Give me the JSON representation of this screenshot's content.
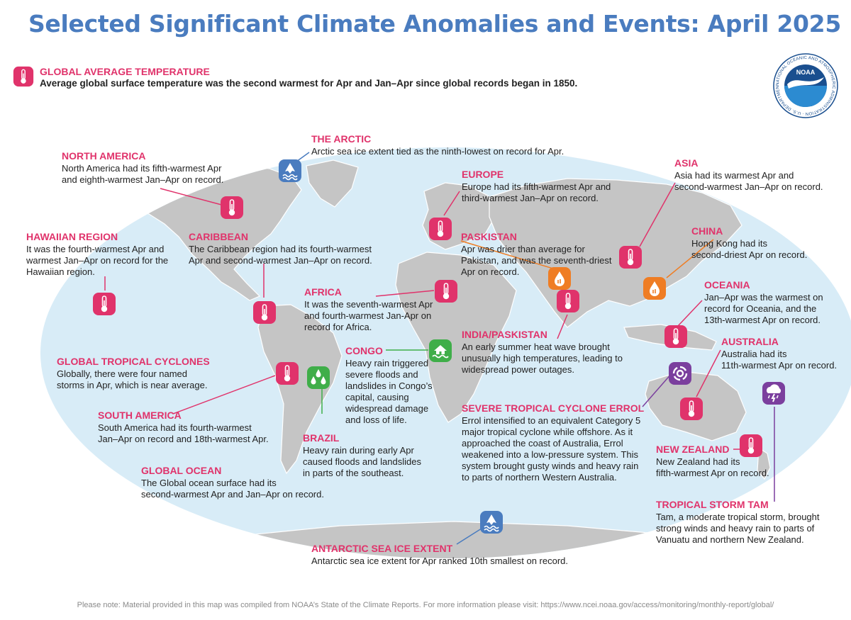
{
  "title": "Selected Significant Climate Anomalies and Events: April 2025",
  "logo_text": "NOAA",
  "logo_ring_text": "NATIONAL OCEANIC AND ATMOSPHERIC ADMINISTRATION · U.S. DEPARTMENT OF COMMERCE",
  "global": {
    "heading": "GLOBAL AVERAGE TEMPERATURE",
    "text": "Average global surface temperature was the second warmest for Apr and Jan–Apr since global records began in 1850.",
    "icon": "thermometer-icon"
  },
  "colors": {
    "title": "#4a7cbf",
    "heading": "#e0336b",
    "ocean": "#d8ecf7",
    "land": "#c5c5c5",
    "ice_icon": "#4a7cbf",
    "drought_icon": "#ef7d24",
    "rain_icon": "#3fae49",
    "storm_icon": "#7b3f9e"
  },
  "events": [
    {
      "id": "north-america",
      "heading": "NORTH AMERICA",
      "lines": [
        "North America had its fifth-warmest Apr",
        "and eighth-warmest Jan–Apr on record."
      ],
      "icon": "thermometer-icon"
    },
    {
      "id": "arctic",
      "heading": "THE ARCTIC",
      "lines": [
        "Arctic sea ice extent tied as the ninth-lowest on record for Apr."
      ],
      "icon": "sea-ice-icon"
    },
    {
      "id": "europe",
      "heading": "EUROPE",
      "lines": [
        "Europe had its fifth-warmest Apr and",
        "third-warmest Jan–Apr on record."
      ],
      "icon": "thermometer-icon"
    },
    {
      "id": "asia",
      "heading": "ASIA",
      "lines": [
        "Asia had its warmest Apr and",
        "second-warmest Jan–Apr on record."
      ],
      "icon": "thermometer-icon"
    },
    {
      "id": "hawaiian",
      "heading": "HAWAIIAN REGION",
      "lines": [
        "It was the fourth-warmest Apr and",
        "warmest Jan–Apr on record for the",
        "Hawaiian region."
      ],
      "icon": "thermometer-icon"
    },
    {
      "id": "caribbean",
      "heading": "CARIBBEAN",
      "lines": [
        "The Caribbean region had its fourth-warmest",
        "Apr and second-warmest Jan–Apr on record."
      ],
      "icon": "thermometer-icon"
    },
    {
      "id": "paskistan",
      "heading": "PASKISTAN",
      "lines": [
        "Apr was drier than average for",
        "Pakistan, and was the seventh-driest",
        "Apr on record."
      ],
      "icon": "drought-icon"
    },
    {
      "id": "china",
      "heading": "CHINA",
      "lines": [
        "Hong Kong had its",
        "second-driest Apr on record."
      ],
      "icon": "drought-icon"
    },
    {
      "id": "africa",
      "heading": "AFRICA",
      "lines": [
        "It was the seventh-warmest Apr",
        "and fourth-warmest Jan-Apr on",
        "record for Africa."
      ],
      "icon": "thermometer-icon"
    },
    {
      "id": "oceania",
      "heading": "OCEANIA",
      "lines": [
        "Jan–Apr was the warmest on",
        "record for Oceania, and the",
        "13th-warmest Apr on record."
      ],
      "icon": "thermometer-icon"
    },
    {
      "id": "india-paskistan",
      "heading": "INDIA/PASKISTAN",
      "lines": [
        "An early summer heat wave brought",
        "unusually high temperatures, leading to",
        "widespread power outages."
      ],
      "icon": "thermometer-icon"
    },
    {
      "id": "australia",
      "heading": "AUSTRALIA",
      "lines": [
        "Australia had its",
        "11th-warmest Apr on record."
      ],
      "icon": "thermometer-icon"
    },
    {
      "id": "tropical-cyclones",
      "heading": "GLOBAL TROPICAL CYCLONES",
      "lines": [
        "Globally, there were four named",
        "storms in Apr, which is near average."
      ],
      "icon": "thermometer-icon"
    },
    {
      "id": "congo",
      "heading": "CONGO",
      "lines": [
        "Heavy rain triggered",
        "severe floods and",
        "landslides in Congo’s",
        "capital, causing",
        "widespread damage",
        "and loss of life."
      ],
      "icon": "flood-icon"
    },
    {
      "id": "south-america",
      "heading": "SOUTH AMERICA",
      "lines": [
        "South America had its fourth-warmest",
        "Jan–Apr on record and 18th-warmest Apr."
      ],
      "icon": "thermometer-icon"
    },
    {
      "id": "brazil",
      "heading": "BRAZIL",
      "lines": [
        "Heavy rain during early Apr",
        "caused floods and landslides",
        "in parts of the southeast."
      ],
      "icon": "heavy-rain-icon"
    },
    {
      "id": "errol",
      "heading": "SEVERE TROPICAL CYCLONE ERROL",
      "lines": [
        "Errol intensified to an equivalent Category 5",
        "major tropical cyclone while offshore. As it",
        "approached the coast of Australia, Errol",
        "weakened into a low-pressure system. This",
        "system brought gusty winds and heavy rain",
        "to parts of northern Western Australia."
      ],
      "icon": "cyclone-icon"
    },
    {
      "id": "new-zealand",
      "heading": "NEW ZEALAND",
      "lines": [
        "New Zealand had its",
        "fifth-warmest Apr on record."
      ],
      "icon": "thermometer-icon"
    },
    {
      "id": "global-ocean",
      "heading": "GLOBAL OCEAN",
      "lines": [
        "The Global ocean surface had its",
        "second-warmest Apr and Jan–Apr on record."
      ],
      "icon": ""
    },
    {
      "id": "tam",
      "heading": "TROPICAL STORM TAM",
      "lines": [
        "Tam, a moderate tropical storm, brought",
        "strong winds and heavy rain to parts of",
        "Vanuatu and northern New Zealand."
      ],
      "icon": "storm-icon"
    },
    {
      "id": "antarctic",
      "heading": "ANTARCTIC SEA ICE EXTENT",
      "lines": [
        "Antarctic sea ice extent for Apr ranked 10th smallest on record."
      ],
      "icon": "sea-ice-icon"
    }
  ],
  "footer": "Please note: Material provided in this map was compiled from NOAA’s State of the Climate Reports. For more information please visit: https://www.ncei.noaa.gov/access/monitoring/monthly-report/global/"
}
